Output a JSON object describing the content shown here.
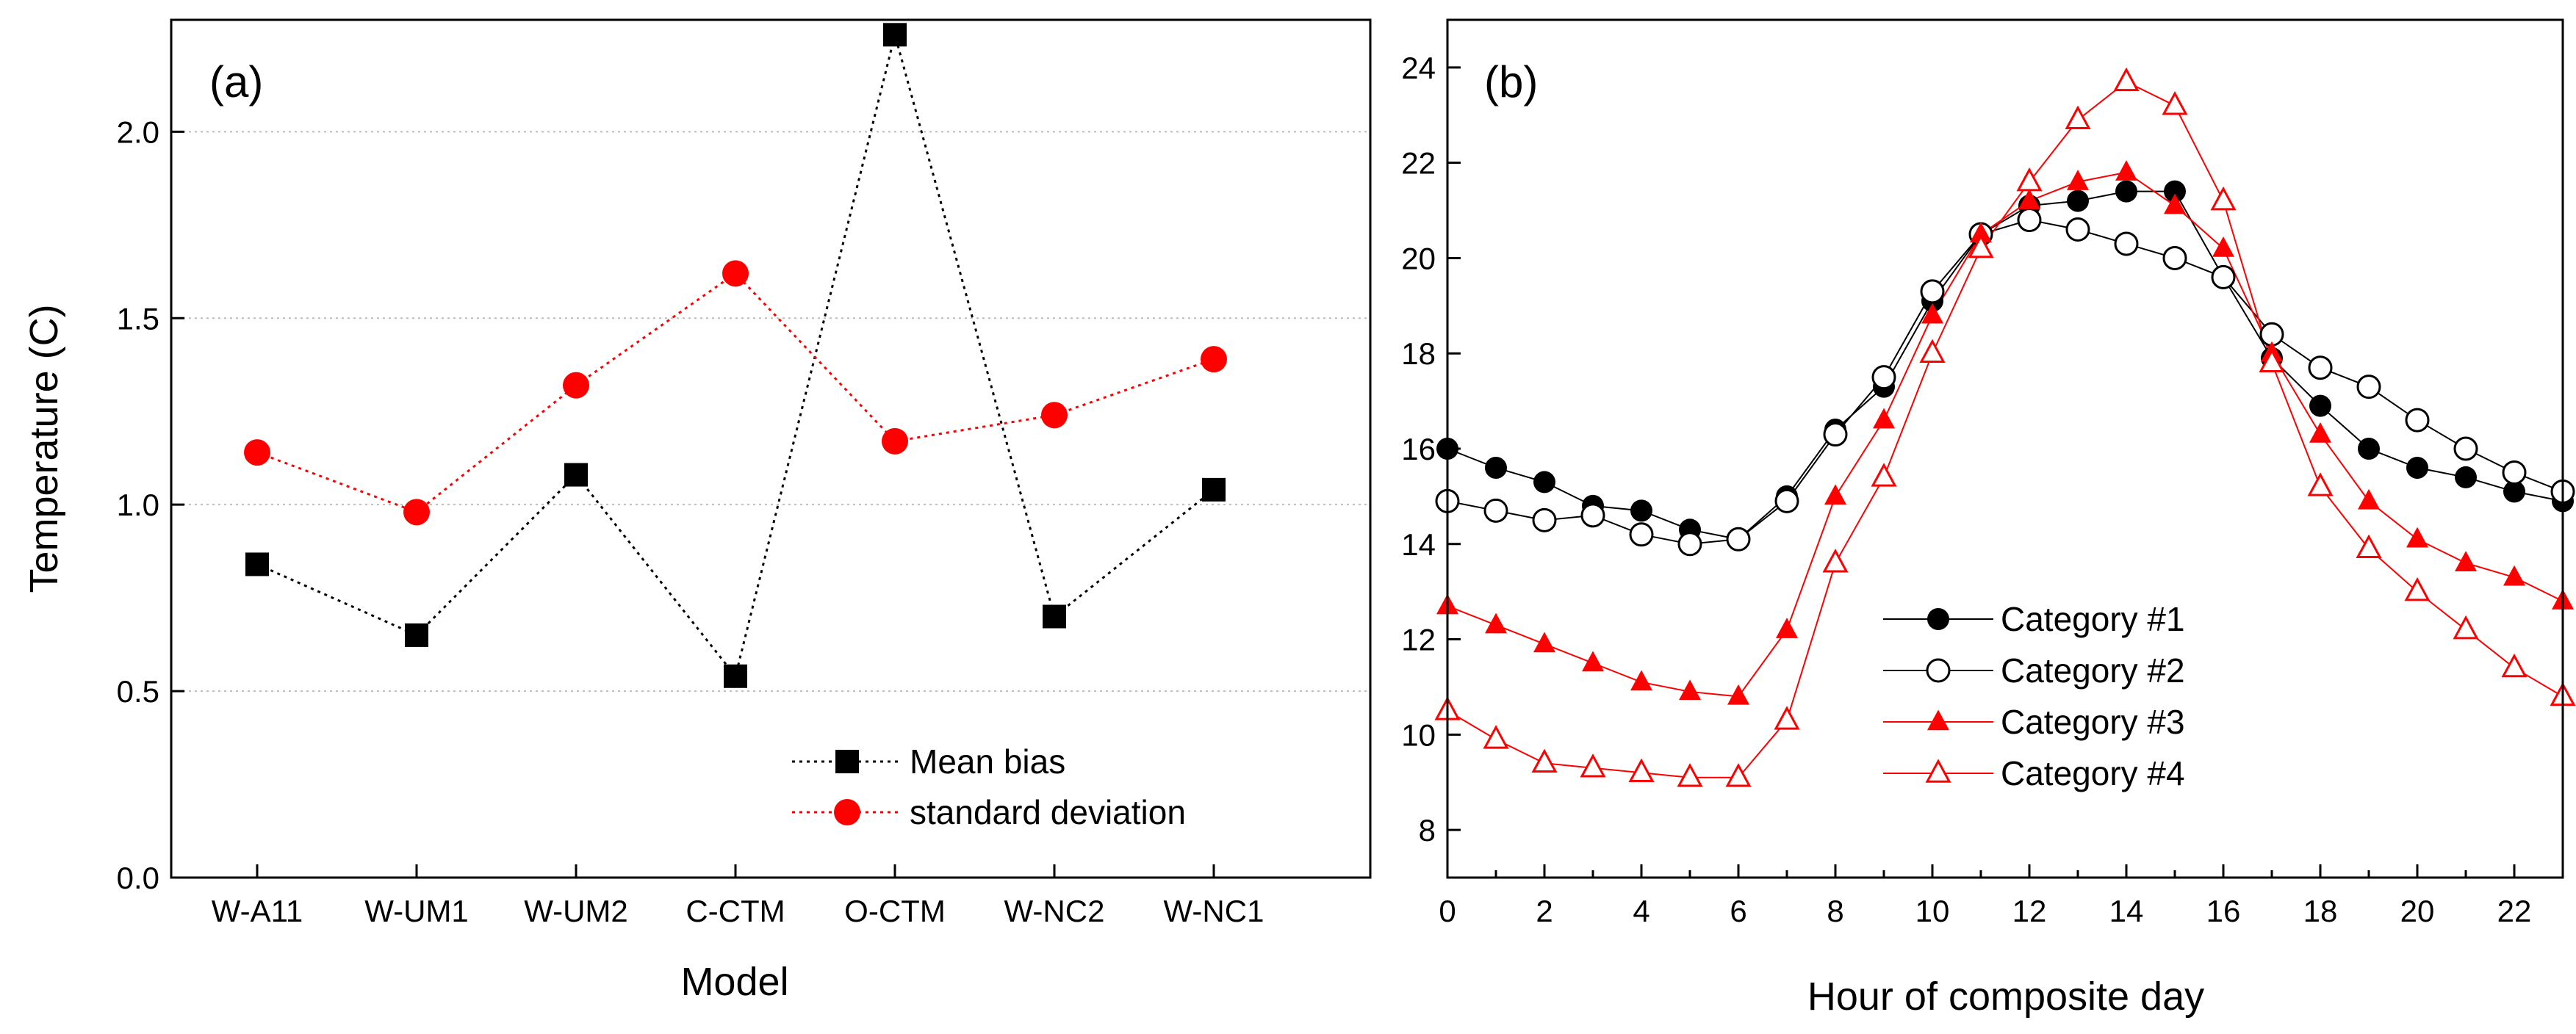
{
  "chart_data": [
    {
      "type": "line",
      "panel_label": "(a)",
      "title": "",
      "xlabel": "Model",
      "ylabel": "Temperature (C)",
      "categories": [
        "W-A11",
        "W-UM1",
        "W-UM2",
        "C-CTM",
        "O-CTM",
        "W-NC2",
        "W-NC1"
      ],
      "ylim": [
        0,
        2.3
      ],
      "yticks": [
        0.0,
        0.5,
        1.0,
        1.5,
        2.0
      ],
      "ytick_labels": [
        "0.0",
        "0.5",
        "1.0",
        "1.5",
        "2.0"
      ],
      "grid": "horizontal dotted",
      "legend_position": "bottom-right",
      "series": [
        {
          "name": "Mean bias",
          "color": "#000000",
          "marker": "square",
          "values": [
            0.84,
            0.65,
            1.08,
            0.54,
            2.26,
            0.7,
            1.04
          ]
        },
        {
          "name": "standard deviation",
          "color": "#ff0000",
          "marker": "circle",
          "values": [
            1.14,
            0.98,
            1.32,
            1.62,
            1.17,
            1.24,
            1.39
          ]
        }
      ]
    },
    {
      "type": "line",
      "panel_label": "(b)",
      "title": "",
      "xlabel": "Hour of composite day",
      "ylabel": "",
      "x": [
        0,
        1,
        2,
        3,
        4,
        5,
        6,
        7,
        8,
        9,
        10,
        11,
        12,
        13,
        14,
        15,
        16,
        17,
        18,
        19,
        20,
        21,
        22,
        23
      ],
      "xlim": [
        0,
        23
      ],
      "xticks": [
        0,
        2,
        4,
        6,
        8,
        10,
        12,
        14,
        16,
        18,
        20,
        22
      ],
      "xtick_labels": [
        "0",
        "2",
        "4",
        "6",
        "8",
        "10",
        "12",
        "14",
        "16",
        "18",
        "20",
        "22"
      ],
      "ylim": [
        7,
        25
      ],
      "yticks": [
        8,
        10,
        12,
        14,
        16,
        18,
        20,
        22,
        24
      ],
      "ytick_labels": [
        "8",
        "10",
        "12",
        "14",
        "16",
        "18",
        "20",
        "22",
        "24"
      ],
      "legend_position": "center-left",
      "series": [
        {
          "name": "Category #1",
          "color": "#000000",
          "marker": "filled-circle",
          "values": [
            16.0,
            15.6,
            15.3,
            14.8,
            14.7,
            14.3,
            14.1,
            15.0,
            16.4,
            17.3,
            19.1,
            20.5,
            21.1,
            21.2,
            21.4,
            21.4,
            19.6,
            17.9,
            16.9,
            16.0,
            15.6,
            15.4,
            15.1,
            14.9
          ]
        },
        {
          "name": "Category #2",
          "color": "#000000",
          "marker": "open-circle",
          "values": [
            14.9,
            14.7,
            14.5,
            14.6,
            14.2,
            14.0,
            14.1,
            14.9,
            16.3,
            17.5,
            19.3,
            20.5,
            20.8,
            20.6,
            20.3,
            20.0,
            19.6,
            18.4,
            17.7,
            17.3,
            16.6,
            16.0,
            15.5,
            15.1
          ]
        },
        {
          "name": "Category #3",
          "color": "#ff0000",
          "marker": "filled-triangle",
          "values": [
            12.7,
            12.3,
            11.9,
            11.5,
            11.1,
            10.9,
            10.8,
            12.2,
            15.0,
            16.6,
            18.8,
            20.5,
            21.2,
            21.6,
            21.8,
            21.1,
            20.2,
            18.0,
            16.3,
            14.9,
            14.1,
            13.6,
            13.3,
            12.8
          ]
        },
        {
          "name": "Category #4",
          "color": "#ff0000",
          "marker": "open-triangle",
          "values": [
            10.5,
            9.9,
            9.4,
            9.3,
            9.2,
            9.1,
            9.1,
            10.3,
            13.6,
            15.4,
            18.0,
            20.2,
            21.6,
            22.9,
            23.7,
            23.2,
            21.2,
            17.8,
            15.2,
            13.9,
            13.0,
            12.2,
            11.4,
            10.8
          ]
        }
      ]
    }
  ]
}
